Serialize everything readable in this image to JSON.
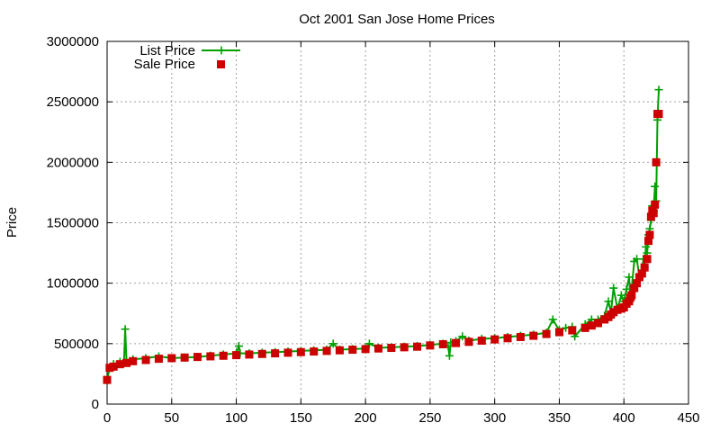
{
  "chart_data": {
    "type": "scatter",
    "title": "Oct 2001 San Jose Home Prices",
    "xlabel": "",
    "ylabel": "Price",
    "xlim": [
      0,
      450
    ],
    "ylim": [
      0,
      3000000
    ],
    "xticks": [
      0,
      50,
      100,
      150,
      200,
      250,
      300,
      350,
      400,
      450
    ],
    "yticks": [
      0,
      500000,
      1000000,
      1500000,
      2000000,
      2500000,
      3000000
    ],
    "grid": true,
    "legend_position": "top-left",
    "series": [
      {
        "name": "List Price",
        "style": "linespoints",
        "marker": "plus",
        "color": "#00a000",
        "x": [
          0,
          2,
          5,
          10,
          13,
          14,
          15,
          20,
          30,
          40,
          50,
          60,
          70,
          80,
          90,
          100,
          102,
          103,
          110,
          120,
          130,
          140,
          150,
          160,
          170,
          175,
          180,
          190,
          200,
          203,
          210,
          220,
          230,
          240,
          250,
          260,
          264,
          265,
          266,
          270,
          275,
          280,
          290,
          300,
          310,
          320,
          330,
          340,
          345,
          350,
          355,
          360,
          362,
          370,
          375,
          380,
          385,
          388,
          390,
          392,
          395,
          398,
          400,
          402,
          404,
          405,
          406,
          408,
          410,
          412,
          414,
          415,
          416,
          417,
          418,
          419,
          420,
          421,
          422,
          423,
          424,
          425,
          426,
          427
        ],
        "y": [
          200000,
          300000,
          330000,
          350000,
          340000,
          620000,
          360000,
          370000,
          380000,
          395000,
          380000,
          385000,
          390000,
          400000,
          410000,
          420000,
          480000,
          420000,
          420000,
          425000,
          430000,
          435000,
          440000,
          445000,
          450000,
          500000,
          450000,
          455000,
          460000,
          500000,
          465000,
          470000,
          475000,
          480000,
          490000,
          500000,
          480000,
          400000,
          510000,
          520000,
          560000,
          525000,
          540000,
          545000,
          555000,
          565000,
          575000,
          590000,
          700000,
          610000,
          630000,
          640000,
          560000,
          660000,
          700000,
          700000,
          730000,
          850000,
          760000,
          960000,
          790000,
          900000,
          850000,
          950000,
          1050000,
          880000,
          950000,
          1180000,
          1200000,
          1050000,
          1100000,
          1200000,
          1130000,
          1300000,
          1250000,
          1400000,
          1450000,
          1520000,
          1640000,
          1600000,
          1800000,
          1680000,
          2350000,
          2600000
        ]
      },
      {
        "name": "Sale Price",
        "style": "points",
        "marker": "square",
        "color": "#cc0000",
        "x": [
          0,
          2,
          5,
          10,
          15,
          20,
          30,
          40,
          50,
          60,
          70,
          80,
          90,
          100,
          110,
          120,
          130,
          140,
          150,
          160,
          170,
          180,
          190,
          200,
          210,
          220,
          230,
          240,
          250,
          260,
          270,
          280,
          290,
          300,
          310,
          320,
          330,
          340,
          350,
          360,
          370,
          375,
          380,
          385,
          388,
          390,
          392,
          395,
          398,
          400,
          402,
          404,
          405,
          406,
          408,
          410,
          412,
          414,
          416,
          418,
          419,
          420,
          421,
          422,
          423,
          424,
          425,
          426,
          427
        ],
        "y": [
          200000,
          300000,
          310000,
          330000,
          340000,
          355000,
          365000,
          375000,
          380000,
          385000,
          390000,
          395000,
          400000,
          405000,
          410000,
          415000,
          420000,
          425000,
          430000,
          435000,
          440000,
          445000,
          450000,
          455000,
          460000,
          465000,
          470000,
          475000,
          485000,
          495000,
          505000,
          515000,
          525000,
          535000,
          545000,
          555000,
          565000,
          580000,
          595000,
          610000,
          630000,
          650000,
          670000,
          700000,
          720000,
          740000,
          760000,
          780000,
          790000,
          800000,
          830000,
          850000,
          880000,
          900000,
          960000,
          1000000,
          1050000,
          1080000,
          1130000,
          1200000,
          1350000,
          1400000,
          1550000,
          1600000,
          1580000,
          1650000,
          2000000,
          2400000,
          2400000
        ]
      }
    ]
  }
}
